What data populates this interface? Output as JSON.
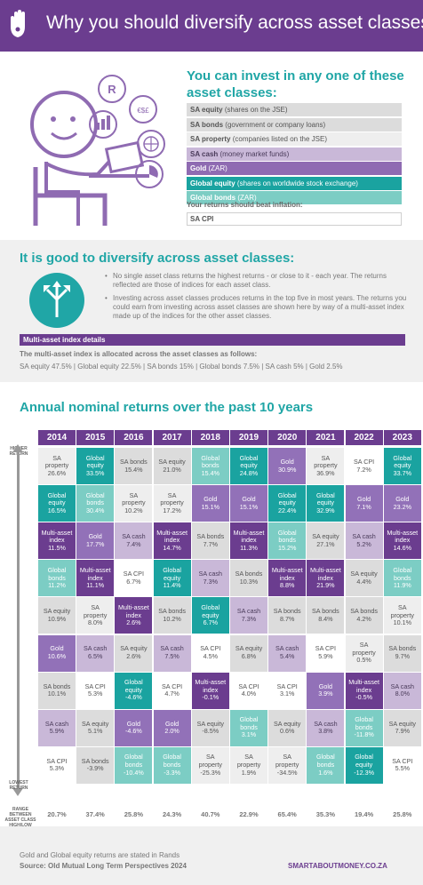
{
  "header": {
    "title": "Why you should diversify across asset classes"
  },
  "section1": {
    "heading": "You can invest in any one of these asset classes:",
    "assets": [
      {
        "name": "SA equity",
        "desc": "(shares on the JSE)",
        "bg": "#dcdcdc",
        "fg": "#555555"
      },
      {
        "name": "SA bonds",
        "desc": "(government or company loans)",
        "bg": "#dcdcdc",
        "fg": "#555555"
      },
      {
        "name": "SA property",
        "desc": "(companies listed on the JSE)",
        "bg": "#eeeeee",
        "fg": "#555555"
      },
      {
        "name": "SA cash",
        "desc": "(money market funds)",
        "bg": "#c9b8d8",
        "fg": "#4a3b5a"
      },
      {
        "name": "Gold",
        "desc": "(ZAR)",
        "bg": "#8f6bb2",
        "fg": "#ffffff"
      },
      {
        "name": "Global equity",
        "desc": "(shares on worldwide stock exchange)",
        "bg": "#1aa3a0",
        "fg": "#ffffff"
      },
      {
        "name": "Global bonds",
        "desc": "(ZAR)",
        "bg": "#7ccdc4",
        "fg": "#ffffff"
      }
    ],
    "beat_label": "Your returns should beat inflation:",
    "cpi_label": "SA CPI"
  },
  "section2": {
    "heading": "It is good to diversify across asset classes:",
    "bullets": [
      "No single asset class returns the highest returns - or close to it - each year. The returns reflected are those of indices for each asset class.",
      "Investing across asset classes produces returns in the top five in most years. The returns you could earn from investing across asset classes are shown here by way of a multi-asset index made up of the indices for the other asset classes."
    ],
    "mai_title": "Multi-asset index details",
    "alloc_intro": "The multi-asset index is allocated across the asset classes as follows:",
    "alloc_line": "SA equity 47.5%  |  Global equity 22.5%  |  SA bonds 15%  |  Global bonds 7.5%  |  SA cash 5%  |  Gold 2.5%"
  },
  "section3": {
    "heading": "Annual nominal returns over the past 10 years",
    "higher_label": "HIGHER RETURN",
    "lower_label": "LOWEST RETURN",
    "range_label": "RANGE BETWEEN ASSET CLASS HIGH/LOW (excl. CPI)"
  },
  "palette": {
    "SA property": {
      "bg": "#eeeeee",
      "fg": "#555555"
    },
    "SA equity": {
      "bg": "#dcdcdc",
      "fg": "#555555"
    },
    "SA bonds": {
      "bg": "#dcdcdc",
      "fg": "#555555"
    },
    "SA cash": {
      "bg": "#c9b8d8",
      "fg": "#4a3b5a"
    },
    "Gold": {
      "bg": "#9271b8",
      "fg": "#ffffff"
    },
    "Global equity": {
      "bg": "#1aa3a0",
      "fg": "#ffffff"
    },
    "Global bonds": {
      "bg": "#7ccdc4",
      "fg": "#ffffff"
    },
    "Multi-asset index": {
      "bg": "#6b3d8f",
      "fg": "#ffffff"
    },
    "SA CPI": {
      "bg": "#ffffff",
      "fg": "#555555"
    }
  },
  "chart_data": {
    "type": "table",
    "title": "Annual nominal returns over the past 10 years",
    "columns": [
      {
        "year": "2014",
        "range": "20.7%",
        "cells": [
          {
            "asset": "SA property",
            "value": "26.6%"
          },
          {
            "asset": "Global equity",
            "value": "16.5%"
          },
          {
            "asset": "Multi-asset index",
            "value": "11.5%"
          },
          {
            "asset": "Global bonds",
            "value": "11.2%"
          },
          {
            "asset": "SA equity",
            "value": "10.9%"
          },
          {
            "asset": "Gold",
            "value": "10.6%"
          },
          {
            "asset": "SA bonds",
            "value": "10.1%"
          },
          {
            "asset": "SA cash",
            "value": "5.9%"
          },
          {
            "asset": "SA CPI",
            "value": "5.3%"
          }
        ]
      },
      {
        "year": "2015",
        "range": "37.4%",
        "cells": [
          {
            "asset": "Global equity",
            "value": "33.5%"
          },
          {
            "asset": "Global bonds",
            "value": "30.4%"
          },
          {
            "asset": "Gold",
            "value": "17.7%"
          },
          {
            "asset": "Multi-asset index",
            "value": "11.1%"
          },
          {
            "asset": "SA property",
            "value": "8.0%"
          },
          {
            "asset": "SA cash",
            "value": "6.5%"
          },
          {
            "asset": "SA CPI",
            "value": "5.3%"
          },
          {
            "asset": "SA equity",
            "value": "5.1%"
          },
          {
            "asset": "SA bonds",
            "value": "-3.9%"
          }
        ]
      },
      {
        "year": "2016",
        "range": "25.8%",
        "cells": [
          {
            "asset": "SA bonds",
            "value": "15.4%"
          },
          {
            "asset": "SA property",
            "value": "10.2%"
          },
          {
            "asset": "SA cash",
            "value": "7.4%"
          },
          {
            "asset": "SA CPI",
            "value": "6.7%"
          },
          {
            "asset": "Multi-asset index",
            "value": "2.6%"
          },
          {
            "asset": "SA equity",
            "value": "2.6%"
          },
          {
            "asset": "Global equity",
            "value": "-4.6%"
          },
          {
            "asset": "Gold",
            "value": "-4.6%"
          },
          {
            "asset": "Global bonds",
            "value": "-10.4%"
          }
        ]
      },
      {
        "year": "2017",
        "range": "24.3%",
        "cells": [
          {
            "asset": "SA equity",
            "value": "21.0%"
          },
          {
            "asset": "SA property",
            "value": "17.2%"
          },
          {
            "asset": "Multi-asset index",
            "value": "14.7%"
          },
          {
            "asset": "Global equity",
            "value": "11.4%"
          },
          {
            "asset": "SA bonds",
            "value": "10.2%"
          },
          {
            "asset": "SA cash",
            "value": "7.5%"
          },
          {
            "asset": "SA CPI",
            "value": "4.7%"
          },
          {
            "asset": "Gold",
            "value": "2.0%"
          },
          {
            "asset": "Global bonds",
            "value": "-3.3%"
          }
        ]
      },
      {
        "year": "2018",
        "range": "40.7%",
        "cells": [
          {
            "asset": "Global bonds",
            "value": "15.4%"
          },
          {
            "asset": "Gold",
            "value": "15.1%"
          },
          {
            "asset": "SA bonds",
            "value": "7.7%"
          },
          {
            "asset": "SA cash",
            "value": "7.3%"
          },
          {
            "asset": "Global equity",
            "value": "6.7%"
          },
          {
            "asset": "SA CPI",
            "value": "4.5%"
          },
          {
            "asset": "Multi-asset index",
            "value": "-0.1%"
          },
          {
            "asset": "SA equity",
            "value": "-8.5%"
          },
          {
            "asset": "SA property",
            "value": "-25.3%"
          }
        ]
      },
      {
        "year": "2019",
        "range": "22.9%",
        "cells": [
          {
            "asset": "Global equity",
            "value": "24.8%"
          },
          {
            "asset": "Gold",
            "value": "15.1%"
          },
          {
            "asset": "Multi-asset index",
            "value": "11.3%"
          },
          {
            "asset": "SA bonds",
            "value": "10.3%"
          },
          {
            "asset": "SA cash",
            "value": "7.3%"
          },
          {
            "asset": "SA equity",
            "value": "6.8%"
          },
          {
            "asset": "SA CPI",
            "value": "4.0%"
          },
          {
            "asset": "Global bonds",
            "value": "3.1%"
          },
          {
            "asset": "SA property",
            "value": "1.9%"
          }
        ]
      },
      {
        "year": "2020",
        "range": "65.4%",
        "cells": [
          {
            "asset": "Gold",
            "value": "30.9%"
          },
          {
            "asset": "Global equity",
            "value": "22.4%"
          },
          {
            "asset": "Global bonds",
            "value": "15.2%"
          },
          {
            "asset": "Multi-asset index",
            "value": "8.8%"
          },
          {
            "asset": "SA bonds",
            "value": "8.7%"
          },
          {
            "asset": "SA cash",
            "value": "5.4%"
          },
          {
            "asset": "SA CPI",
            "value": "3.1%"
          },
          {
            "asset": "SA equity",
            "value": "0.6%"
          },
          {
            "asset": "SA property",
            "value": "-34.5%"
          }
        ]
      },
      {
        "year": "2021",
        "range": "35.3%",
        "cells": [
          {
            "asset": "SA property",
            "value": "36.9%"
          },
          {
            "asset": "Global equity",
            "value": "32.9%"
          },
          {
            "asset": "SA equity",
            "value": "27.1%"
          },
          {
            "asset": "Multi-asset index",
            "value": "21.9%"
          },
          {
            "asset": "SA bonds",
            "value": "8.4%"
          },
          {
            "asset": "SA CPI",
            "value": "5.9%"
          },
          {
            "asset": "Gold",
            "value": "3.9%"
          },
          {
            "asset": "SA cash",
            "value": "3.8%"
          },
          {
            "asset": "Global bonds",
            "value": "1.6%"
          }
        ]
      },
      {
        "year": "2022",
        "range": "19.4%",
        "cells": [
          {
            "asset": "SA CPI",
            "value": "7.2%"
          },
          {
            "asset": "Gold",
            "value": "7.1%"
          },
          {
            "asset": "SA cash",
            "value": "5.2%"
          },
          {
            "asset": "SA equity",
            "value": "4.4%"
          },
          {
            "asset": "SA bonds",
            "value": "4.2%"
          },
          {
            "asset": "SA property",
            "value": "0.5%"
          },
          {
            "asset": "Multi-asset index",
            "value": "-0.5%"
          },
          {
            "asset": "Global bonds",
            "value": "-11.8%"
          },
          {
            "asset": "Global equity",
            "value": "-12.3%"
          }
        ]
      },
      {
        "year": "2023",
        "range": "25.8%",
        "cells": [
          {
            "asset": "Global equity",
            "value": "33.7%"
          },
          {
            "asset": "Gold",
            "value": "23.2%"
          },
          {
            "asset": "Multi-asset index",
            "value": "14.6%"
          },
          {
            "asset": "Global bonds",
            "value": "11.9%"
          },
          {
            "asset": "SA property",
            "value": "10.1%"
          },
          {
            "asset": "SA bonds",
            "value": "9.7%"
          },
          {
            "asset": "SA cash",
            "value": "8.0%"
          },
          {
            "asset": "SA equity",
            "value": "7.9%"
          },
          {
            "asset": "SA CPI",
            "value": "5.5%"
          }
        ]
      }
    ]
  },
  "footer": {
    "note": "Gold and Global equity returns are stated in Rands",
    "source": "Source:  Old Mutual Long Term Perspectives 2024",
    "url": "SMARTABOUTMONEY.CO.ZA"
  }
}
